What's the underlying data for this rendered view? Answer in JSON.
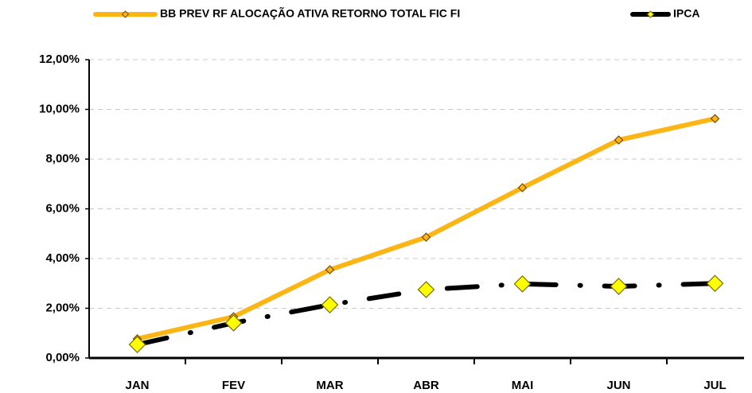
{
  "chart_data": {
    "type": "line",
    "categories": [
      "JAN",
      "FEV",
      "MAR",
      "ABR",
      "MAI",
      "JUN",
      "JUL"
    ],
    "series": [
      {
        "name": "BB PREV RF ALOCAÇÃO ATIVA RETORNO TOTAL FIC FI",
        "color": "#fbb616",
        "marker_color": "#fbb616",
        "values": [
          0.77,
          1.66,
          3.55,
          4.86,
          6.85,
          8.77,
          9.63
        ]
      },
      {
        "name": "IPCA",
        "color": "#000000",
        "marker_color": "#ffff00",
        "values": [
          0.54,
          1.41,
          2.14,
          2.75,
          2.98,
          2.88,
          3.0
        ]
      }
    ],
    "ylim": [
      0,
      12
    ],
    "yticks": [
      {
        "value": 0,
        "label": "0,00%"
      },
      {
        "value": 2,
        "label": "2,00%"
      },
      {
        "value": 4,
        "label": "4,00%"
      },
      {
        "value": 6,
        "label": "6,00%"
      },
      {
        "value": 8,
        "label": "8,00%"
      },
      {
        "value": 10,
        "label": "10,00%"
      },
      {
        "value": 12,
        "label": "12,00%"
      }
    ],
    "grid": true
  }
}
